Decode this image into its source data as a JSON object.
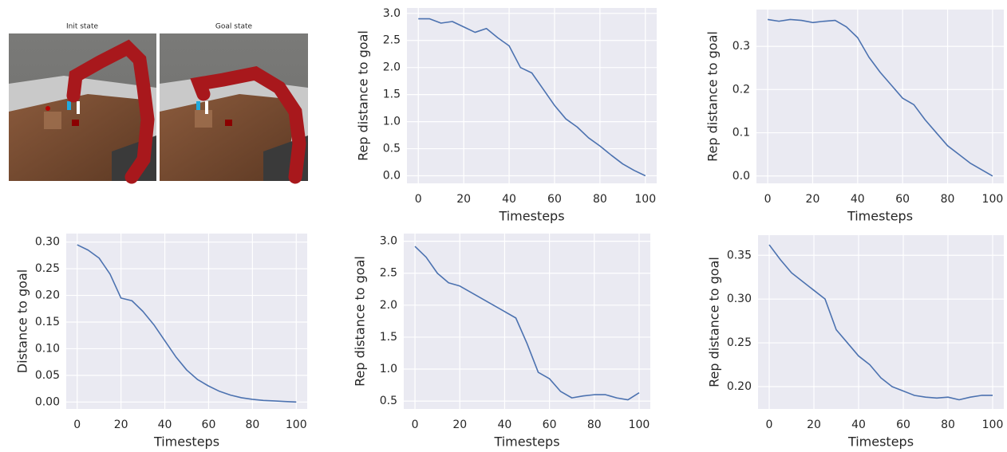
{
  "images": [
    {
      "title": "Init state"
    },
    {
      "title": "Goal state"
    }
  ],
  "chart_data": [
    {
      "type": "line",
      "xlabel": "Timesteps",
      "ylabel": "Rep distance to goal",
      "x": [
        0,
        5,
        10,
        15,
        20,
        25,
        30,
        35,
        40,
        45,
        50,
        55,
        60,
        65,
        70,
        75,
        80,
        85,
        90,
        95,
        100
      ],
      "series": [
        {
          "color": "#4c72b0",
          "values": [
            2.9,
            2.9,
            2.82,
            2.85,
            2.75,
            2.65,
            2.72,
            2.55,
            2.4,
            2.0,
            1.9,
            1.6,
            1.3,
            1.05,
            0.9,
            0.7,
            0.55,
            0.38,
            0.22,
            0.1,
            0.0
          ]
        }
      ],
      "xlim": [
        -5,
        105
      ],
      "ylim": [
        -0.14,
        3.1
      ],
      "xticks": [
        0,
        20,
        40,
        60,
        80,
        100
      ],
      "yticks": [
        {
          "value": 0,
          "label": "0.0"
        },
        0.5,
        {
          "value": 1,
          "label": "1.0"
        },
        1.5,
        {
          "value": 2,
          "label": "2.0"
        },
        2.5,
        {
          "value": 3,
          "label": "3.0"
        }
      ],
      "grid": true
    },
    {
      "type": "line",
      "xlabel": "Timesteps",
      "ylabel": "Rep distance to goal",
      "x": [
        0,
        5,
        10,
        15,
        20,
        25,
        30,
        35,
        40,
        45,
        50,
        55,
        60,
        65,
        70,
        75,
        80,
        85,
        90,
        95,
        100
      ],
      "series": [
        {
          "color": "#4c72b0",
          "values": [
            0.362,
            0.358,
            0.362,
            0.36,
            0.355,
            0.358,
            0.36,
            0.345,
            0.32,
            0.275,
            0.24,
            0.21,
            0.18,
            0.165,
            0.13,
            0.1,
            0.07,
            0.05,
            0.03,
            0.015,
            0.0
          ]
        }
      ],
      "xlim": [
        -5,
        105
      ],
      "ylim": [
        -0.017,
        0.385
      ],
      "xticks": [
        0,
        20,
        40,
        60,
        80,
        100
      ],
      "yticks": [
        {
          "value": 0,
          "label": "0.0"
        },
        0.1,
        0.2,
        0.3
      ],
      "grid": true
    },
    {
      "type": "line",
      "xlabel": "Timesteps",
      "ylabel": "Distance to goal",
      "x": [
        0,
        5,
        10,
        15,
        20,
        25,
        30,
        35,
        40,
        45,
        50,
        55,
        60,
        65,
        70,
        75,
        80,
        85,
        90,
        95,
        100
      ],
      "series": [
        {
          "color": "#4c72b0",
          "values": [
            0.295,
            0.285,
            0.27,
            0.24,
            0.195,
            0.19,
            0.17,
            0.145,
            0.115,
            0.085,
            0.06,
            0.042,
            0.03,
            0.02,
            0.013,
            0.008,
            0.005,
            0.003,
            0.002,
            0.001,
            0.0
          ]
        }
      ],
      "xlim": [
        -5,
        105
      ],
      "ylim": [
        -0.013,
        0.316
      ],
      "xticks": [
        0,
        20,
        40,
        60,
        80,
        100
      ],
      "yticks": [
        {
          "value": 0,
          "label": "0.00"
        },
        0.05,
        {
          "value": 0.1,
          "label": "0.10"
        },
        0.15,
        {
          "value": 0.2,
          "label": "0.20"
        },
        0.25,
        {
          "value": 0.3,
          "label": "0.30"
        }
      ],
      "grid": true
    },
    {
      "type": "line",
      "xlabel": "Timesteps",
      "ylabel": "Rep distance to goal",
      "x": [
        0,
        5,
        10,
        15,
        20,
        25,
        30,
        35,
        40,
        45,
        50,
        55,
        60,
        65,
        70,
        75,
        80,
        85,
        90,
        95,
        100
      ],
      "series": [
        {
          "color": "#4c72b0",
          "values": [
            2.92,
            2.75,
            2.5,
            2.35,
            2.3,
            2.2,
            2.1,
            2.0,
            1.9,
            1.8,
            1.4,
            0.95,
            0.85,
            0.65,
            0.55,
            0.58,
            0.6,
            0.6,
            0.55,
            0.52,
            0.63
          ]
        }
      ],
      "xlim": [
        -5,
        105
      ],
      "ylim": [
        0.377,
        3.12
      ],
      "xticks": [
        0,
        20,
        40,
        60,
        80,
        100
      ],
      "yticks": [
        0.5,
        {
          "value": 1,
          "label": "1.0"
        },
        1.5,
        {
          "value": 2,
          "label": "2.0"
        },
        2.5,
        {
          "value": 3,
          "label": "3.0"
        }
      ],
      "grid": true
    },
    {
      "type": "line",
      "xlabel": "Timesteps",
      "ylabel": "Rep distance to goal",
      "x": [
        0,
        5,
        10,
        15,
        20,
        25,
        30,
        35,
        40,
        45,
        50,
        55,
        60,
        65,
        70,
        75,
        80,
        85,
        90,
        95,
        100
      ],
      "series": [
        {
          "color": "#4c72b0",
          "values": [
            0.362,
            0.345,
            0.33,
            0.32,
            0.31,
            0.3,
            0.265,
            0.25,
            0.235,
            0.225,
            0.21,
            0.2,
            0.195,
            0.19,
            0.188,
            0.187,
            0.188,
            0.185,
            0.188,
            0.19,
            0.19
          ]
        }
      ],
      "xlim": [
        -5,
        105
      ],
      "ylim": [
        0.1745,
        0.373
      ],
      "xticks": [
        0,
        20,
        40,
        60,
        80,
        100
      ],
      "yticks": [
        {
          "value": 0.2,
          "label": "0.20"
        },
        0.25,
        {
          "value": 0.3,
          "label": "0.30"
        },
        0.35
      ],
      "grid": true
    }
  ]
}
